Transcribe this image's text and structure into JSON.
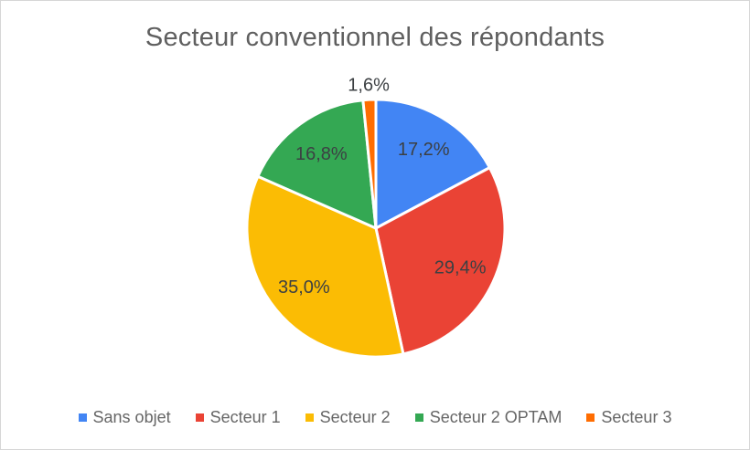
{
  "chart_data": {
    "type": "pie",
    "title": "Secteur conventionnel des répondants",
    "legend_position": "bottom",
    "start_angle_deg": 0,
    "direction": "clockwise",
    "value_format": "percent_comma_decimal",
    "slices": [
      {
        "label": "Sans objet",
        "value_pct": 17.2,
        "display": "17,2%",
        "color": "#4285F4"
      },
      {
        "label": "Secteur 1",
        "value_pct": 29.4,
        "display": "29,4%",
        "color": "#EA4335"
      },
      {
        "label": "Secteur 2",
        "value_pct": 35.0,
        "display": "35,0%",
        "color": "#FBBC04"
      },
      {
        "label": "Secteur 2 OPTAM",
        "value_pct": 16.8,
        "display": "16,8%",
        "color": "#34A853"
      },
      {
        "label": "Secteur 3",
        "value_pct": 1.6,
        "display": "1,6%",
        "color": "#FF6D01"
      }
    ],
    "colors": {
      "title_text": "#5f5f5f",
      "slice_label_text": "#3c4043",
      "legend_text": "#666666",
      "slice_separator": "#ffffff",
      "page_border": "#d6d6d6",
      "background": "#ffffff"
    }
  }
}
